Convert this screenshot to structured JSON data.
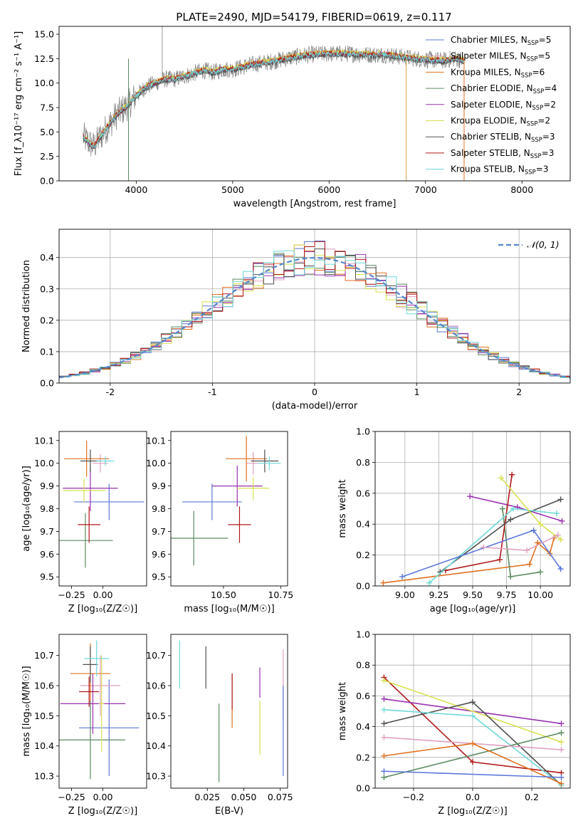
{
  "figure": {
    "title": "PLATE=2490, MJD=54179, FIBERID=0619, z=0.117"
  },
  "chart_data": [
    {
      "id": "spectrum",
      "type": "line",
      "title": "PLATE=2490, MJD=54179, FIBERID=0619, z=0.117",
      "xlabel": "wavelength [Angstrom, rest frame]",
      "ylabel": "Flux [f_λ10⁻¹⁷ erg cm⁻² s⁻¹ A⁻¹]",
      "xlim": [
        3200,
        8500
      ],
      "ylim": [
        0,
        15.8
      ],
      "xticks": [
        4000,
        5000,
        6000,
        7000,
        8000
      ],
      "yticks": [
        0.0,
        2.5,
        5.0,
        7.5,
        10.0,
        12.5,
        15.0
      ],
      "legend_loc": "right",
      "data_x": [
        3450,
        3500,
        3560,
        3620,
        3700,
        3800,
        3900,
        4000,
        4100,
        4200,
        4300,
        4400,
        4500,
        4600,
        4700,
        4800,
        4900,
        5000,
        5200,
        5400,
        5600,
        5800,
        6000,
        6200,
        6400,
        6600,
        6800,
        7000,
        7200,
        7300,
        7400
      ],
      "data_y": [
        4.5,
        4.0,
        3.5,
        4.4,
        5.5,
        6.8,
        7.6,
        8.7,
        9.6,
        10.0,
        10.4,
        10.4,
        10.7,
        11.0,
        11.3,
        11.1,
        11.4,
        11.4,
        11.9,
        12.2,
        12.6,
        12.9,
        13.0,
        13.0,
        12.9,
        12.9,
        12.6,
        12.4,
        12.3,
        12.5,
        12.3
      ],
      "series": [
        {
          "name": "Chabrier MILES, N_SSP=5",
          "color": "#5b78d9",
          "offset": 0.05
        },
        {
          "name": "Salpeter MILES, N_SSP=5",
          "color": "#e0a0c0",
          "offset": -0.05
        },
        {
          "name": "Kroupa MILES, N_SSP=6",
          "color": "#e07020",
          "offset": 0.1
        },
        {
          "name": "Chabrier ELODIE, N_SSP=4",
          "color": "#5a8a60",
          "offset": -0.1
        },
        {
          "name": "Salpeter ELODIE, N_SSP=2",
          "color": "#9a30b0",
          "offset": 0.0
        },
        {
          "name": "Kroupa ELODIE, N_SSP=2",
          "color": "#d8e050",
          "offset": 0.15
        },
        {
          "name": "Chabrier STELIB, N_SSP=3",
          "color": "#505050",
          "offset": -0.15
        },
        {
          "name": "Salpeter STELIB, N_SSP=3",
          "color": "#b01818",
          "offset": 0.05
        },
        {
          "name": "Kroupa STELIB, N_SSP=3",
          "color": "#70d8d8",
          "offset": 0.0
        }
      ],
      "legend": [
        {
          "prefix": "Chabrier MILES, N",
          "sub": "SSP",
          "suffix": "=5"
        },
        {
          "prefix": "Salpeter MILES, N",
          "sub": "SSP",
          "suffix": "=5"
        },
        {
          "prefix": "Kroupa MILES, N",
          "sub": "SSP",
          "suffix": "=6"
        },
        {
          "prefix": "Chabrier ELODIE, N",
          "sub": "SSP",
          "suffix": "=4"
        },
        {
          "prefix": "Salpeter ELODIE, N",
          "sub": "SSP",
          "suffix": "=2"
        },
        {
          "prefix": "Kroupa ELODIE, N",
          "sub": "SSP",
          "suffix": "=2"
        },
        {
          "prefix": "Chabrier STELIB, N",
          "sub": "SSP",
          "suffix": "=3"
        },
        {
          "prefix": "Salpeter STELIB, N",
          "sub": "SSP",
          "suffix": "=3"
        },
        {
          "prefix": "Kroupa STELIB, N",
          "sub": "SSP",
          "suffix": "=3"
        }
      ],
      "spikes": [
        {
          "x": 3920,
          "color": "#5a8a60"
        },
        {
          "x": 6800,
          "color": "#d8a040"
        },
        {
          "x": 7400,
          "color": "#e07020"
        }
      ]
    },
    {
      "id": "residuals",
      "type": "step",
      "xlabel": "(data-model)/error",
      "ylabel": "Normed distribution",
      "xlim": [
        -2.5,
        2.5
      ],
      "ylim": [
        0,
        0.49
      ],
      "xticks": [
        -2,
        -1,
        0,
        1,
        2
      ],
      "yticks": [
        0.0,
        0.1,
        0.2,
        0.3,
        0.4
      ],
      "grid": true,
      "legend_loc": "top-right",
      "gauss_label": "𝒩(0, 1)",
      "gauss_color": "#5588cc",
      "bin_width": 0.1
    },
    {
      "id": "age_vs_z",
      "type": "errorbar",
      "xlabel": "Z [log₁₀(Z/Z☉)]",
      "ylabel": "age  [log₁₀(age/yr)]",
      "xlim": [
        -0.35,
        0.35
      ],
      "ylim": [
        9.46,
        10.14
      ],
      "xticks": [
        -0.25,
        0.0
      ],
      "xtick_labels": [
        "−0.25",
        "0.00"
      ],
      "yticks": [
        9.5,
        9.6,
        9.7,
        9.8,
        9.9,
        10.0,
        10.1
      ],
      "points": [
        {
          "color": "#5b78d9",
          "x": 0.05,
          "y": 9.83,
          "xe": 0.28,
          "ye": 0.08
        },
        {
          "color": "#e0a0c0",
          "x": -0.02,
          "y": 10.0,
          "xe": 0.06,
          "ye": 0.04
        },
        {
          "color": "#e07020",
          "x": -0.13,
          "y": 10.02,
          "xe": 0.18,
          "ye": 0.08
        },
        {
          "color": "#5a8a60",
          "x": -0.14,
          "y": 9.66,
          "xe": 0.22,
          "ye": 0.12
        },
        {
          "color": "#9a30b0",
          "x": -0.1,
          "y": 9.89,
          "xe": 0.22,
          "ye": 0.1
        },
        {
          "color": "#d8e050",
          "x": -0.15,
          "y": 9.88,
          "xe": 0.17,
          "ye": 0.05
        },
        {
          "color": "#505050",
          "x": -0.1,
          "y": 10.01,
          "xe": 0.08,
          "ye": 0.05
        },
        {
          "color": "#b01818",
          "x": -0.11,
          "y": 9.73,
          "xe": 0.09,
          "ye": 0.08
        },
        {
          "color": "#70d8d8",
          "x": 0.02,
          "y": 10.01,
          "xe": 0.07,
          "ye": 0.02
        }
      ]
    },
    {
      "id": "age_vs_mass",
      "type": "errorbar",
      "xlabel": "mass [log₁₀(M/M☉)]",
      "ylabel": "",
      "xlim": [
        10.27,
        10.78
      ],
      "ylim": [
        9.46,
        10.14
      ],
      "xticks": [
        10.25,
        10.5,
        10.75
      ],
      "xtick_labels": [
        "10.25",
        "10.50",
        "10.75"
      ],
      "yticks": [
        9.5,
        9.6,
        9.7,
        9.8,
        9.9,
        10.0,
        10.1
      ],
      "points": [
        {
          "color": "#5b78d9",
          "x": 10.45,
          "y": 9.83,
          "xe": 0.13,
          "ye": 0.08
        },
        {
          "color": "#e0a0c0",
          "x": 10.63,
          "y": 10.0,
          "xe": 0.03,
          "ye": 0.05
        },
        {
          "color": "#e07020",
          "x": 10.6,
          "y": 10.02,
          "xe": 0.09,
          "ye": 0.1
        },
        {
          "color": "#5a8a60",
          "x": 10.37,
          "y": 9.67,
          "xe": 0.15,
          "ye": 0.12
        },
        {
          "color": "#9a30b0",
          "x": 10.56,
          "y": 9.9,
          "xe": 0.11,
          "ye": 0.09
        },
        {
          "color": "#d8e050",
          "x": 10.63,
          "y": 9.89,
          "xe": 0.07,
          "ye": 0.05
        },
        {
          "color": "#505050",
          "x": 10.68,
          "y": 10.01,
          "xe": 0.06,
          "ye": 0.05
        },
        {
          "color": "#b01818",
          "x": 10.57,
          "y": 9.73,
          "xe": 0.05,
          "ye": 0.08
        },
        {
          "color": "#70d8d8",
          "x": 10.7,
          "y": 10.0,
          "xe": 0.05,
          "ye": 0.03
        }
      ]
    },
    {
      "id": "weight_vs_age",
      "type": "line",
      "xlabel": "age  [log₁₀(age/yr)]",
      "ylabel": "mass weight",
      "xlim": [
        8.78,
        10.22
      ],
      "ylim": [
        0,
        1.0
      ],
      "xticks": [
        9.0,
        9.25,
        9.5,
        9.75,
        10.0
      ],
      "xtick_labels": [
        "9.00",
        "9.25",
        "9.50",
        "9.75",
        "10.00"
      ],
      "yticks": [
        0.0,
        0.2,
        0.4,
        0.6,
        0.8,
        1.0
      ],
      "grid": true,
      "series": [
        {
          "color": "#e07020",
          "x": [
            8.84,
            9.92,
            9.98,
            10.07,
            10.1
          ],
          "y": [
            0.02,
            0.14,
            0.28,
            0.21,
            0.31
          ]
        },
        {
          "color": "#5a8a60",
          "x": [
            9.72,
            9.78,
            10.0
          ],
          "y": [
            0.5,
            0.06,
            0.09
          ]
        },
        {
          "color": "#9a30b0",
          "x": [
            9.48,
            9.83,
            10.16
          ],
          "y": [
            0.58,
            0.51,
            0.42
          ]
        },
        {
          "color": "#b01818",
          "x": [
            9.3,
            9.7,
            9.79
          ],
          "y": [
            0.1,
            0.17,
            0.72
          ]
        },
        {
          "color": "#505050",
          "x": [
            9.26,
            9.78,
            10.15
          ],
          "y": [
            0.09,
            0.43,
            0.56
          ]
        },
        {
          "color": "#70d8d8",
          "x": [
            9.18,
            9.8,
            10.12
          ],
          "y": [
            0.02,
            0.5,
            0.47
          ]
        },
        {
          "color": "#d8e050",
          "x": [
            9.71,
            10.0,
            10.15
          ],
          "y": [
            0.7,
            0.4,
            0.3
          ]
        },
        {
          "color": "#5b78d9",
          "x": [
            8.98,
            9.95,
            10.15
          ],
          "y": [
            0.06,
            0.36,
            0.11
          ]
        },
        {
          "color": "#e0a0c0",
          "x": [
            9.58,
            9.9,
            10.13
          ],
          "y": [
            0.25,
            0.23,
            0.33
          ]
        }
      ]
    },
    {
      "id": "mass_vs_z",
      "type": "errorbar",
      "xlabel": "Z [log₁₀(Z/Z☉)]",
      "ylabel": "mass [log₁₀(M/M☉)]",
      "xlim": [
        -0.35,
        0.35
      ],
      "ylim": [
        10.26,
        10.77
      ],
      "xticks": [
        -0.25,
        0.0
      ],
      "xtick_labels": [
        "−0.25",
        "0.00"
      ],
      "yticks": [
        10.3,
        10.4,
        10.5,
        10.6,
        10.7
      ],
      "points": [
        {
          "color": "#5b78d9",
          "x": 0.05,
          "y": 10.46,
          "xe": 0.24,
          "ye": 0.16
        },
        {
          "color": "#e0a0c0",
          "x": -0.02,
          "y": 10.6,
          "xe": 0.16,
          "ye": 0.1
        },
        {
          "color": "#e07020",
          "x": -0.1,
          "y": 10.64,
          "xe": 0.16,
          "ye": 0.1
        },
        {
          "color": "#5a8a60",
          "x": -0.1,
          "y": 10.42,
          "xe": 0.28,
          "ye": 0.13
        },
        {
          "color": "#9a30b0",
          "x": -0.08,
          "y": 10.54,
          "xe": 0.26,
          "ye": 0.1
        },
        {
          "color": "#d8e050",
          "x": -0.01,
          "y": 10.54,
          "xe": 0.02,
          "ye": 0.16
        },
        {
          "color": "#505050",
          "x": -0.1,
          "y": 10.67,
          "xe": 0.06,
          "ye": 0.06
        },
        {
          "color": "#b01818",
          "x": -0.11,
          "y": 10.58,
          "xe": 0.08,
          "ye": 0.05
        },
        {
          "color": "#70d8d8",
          "x": -0.05,
          "y": 10.69,
          "xe": 0.1,
          "ye": 0.06
        }
      ]
    },
    {
      "id": "mass_vs_ebv",
      "type": "errorbar",
      "xlabel": "E(B-V)",
      "ylabel": "",
      "xlim": [
        0.0,
        0.08
      ],
      "ylim": [
        10.26,
        10.77
      ],
      "xticks": [
        0.025,
        0.05,
        0.075
      ],
      "xtick_labels": [
        "0.025",
        "0.050",
        "0.075"
      ],
      "yticks": [
        10.3,
        10.4,
        10.5,
        10.6,
        10.7
      ],
      "points": [
        {
          "color": "#70d8d8",
          "x": 0.006,
          "y": 10.67,
          "xe": 0,
          "ye": 0.08
        },
        {
          "color": "#505050",
          "x": 0.024,
          "y": 10.66,
          "xe": 0,
          "ye": 0.07
        },
        {
          "color": "#5a8a60",
          "x": 0.033,
          "y": 10.41,
          "xe": 0,
          "ye": 0.13
        },
        {
          "color": "#e07020",
          "x": 0.042,
          "y": 10.55,
          "xe": 0,
          "ye": 0.09
        },
        {
          "color": "#b01818",
          "x": 0.042,
          "y": 10.58,
          "xe": 0,
          "ye": 0.06
        },
        {
          "color": "#9a30b0",
          "x": 0.061,
          "y": 10.61,
          "xe": 0,
          "ye": 0.05
        },
        {
          "color": "#d8e050",
          "x": 0.061,
          "y": 10.46,
          "xe": 0,
          "ye": 0.09
        },
        {
          "color": "#e0a0c0",
          "x": 0.077,
          "y": 10.6,
          "xe": 0,
          "ye": 0.12
        },
        {
          "color": "#5b78d9",
          "x": 0.077,
          "y": 10.45,
          "xe": 0,
          "ye": 0.15
        }
      ]
    },
    {
      "id": "weight_vs_z",
      "type": "line",
      "xlabel": "Z [log₁₀(Z/Z☉)]",
      "ylabel": "mass weight",
      "xlim": [
        -0.33,
        0.33
      ],
      "ylim": [
        0,
        1.0
      ],
      "xticks": [
        -0.2,
        0.0,
        0.2
      ],
      "xtick_labels": [
        "−0.2",
        "0.0",
        "0.2"
      ],
      "yticks": [
        0.0,
        0.2,
        0.4,
        0.6,
        0.8,
        1.0
      ],
      "grid": true,
      "series": [
        {
          "color": "#b01818",
          "x": [
            -0.3,
            0.0,
            0.3
          ],
          "y": [
            0.72,
            0.17,
            0.1
          ]
        },
        {
          "color": "#9a30b0",
          "x": [
            -0.3,
            0.3
          ],
          "y": [
            0.58,
            0.42
          ]
        },
        {
          "color": "#d8e050",
          "x": [
            -0.3,
            0.3
          ],
          "y": [
            0.7,
            0.3
          ]
        },
        {
          "color": "#505050",
          "x": [
            -0.3,
            0.0,
            0.3
          ],
          "y": [
            0.42,
            0.56,
            0.02
          ]
        },
        {
          "color": "#70d8d8",
          "x": [
            -0.3,
            0.0,
            0.3
          ],
          "y": [
            0.51,
            0.47,
            0.02
          ]
        },
        {
          "color": "#5a8a60",
          "x": [
            -0.3,
            0.3
          ],
          "y": [
            0.07,
            0.36
          ]
        },
        {
          "color": "#e0a0c0",
          "x": [
            -0.3,
            0.3
          ],
          "y": [
            0.33,
            0.25
          ]
        },
        {
          "color": "#e07020",
          "x": [
            -0.3,
            0.0,
            0.3
          ],
          "y": [
            0.21,
            0.29,
            0.03
          ]
        },
        {
          "color": "#5b78d9",
          "x": [
            -0.3,
            0.3
          ],
          "y": [
            0.11,
            0.07
          ]
        }
      ]
    }
  ]
}
